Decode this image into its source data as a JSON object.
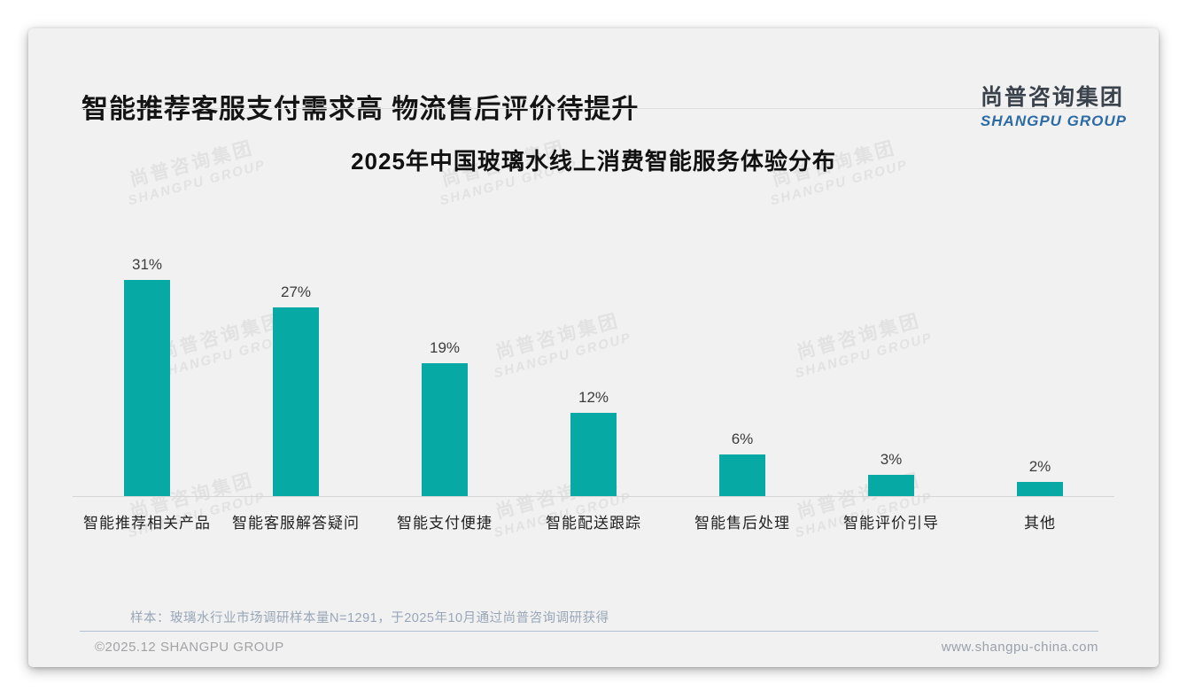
{
  "header": {
    "title": "智能推荐客服支付需求高 物流售后评价待提升",
    "logo": {
      "cn": "尚普咨询集团",
      "en": "SHANGPU GROUP"
    }
  },
  "chart_data": {
    "type": "bar",
    "title": "2025年中国玻璃水线上消费智能服务体验分布",
    "categories": [
      "智能推荐相关产品",
      "智能客服解答疑问",
      "智能支付便捷",
      "智能配送跟踪",
      "智能售后处理",
      "智能评价引导",
      "其他"
    ],
    "values": [
      31,
      27,
      19,
      12,
      6,
      3,
      2
    ],
    "value_labels": [
      "31%",
      "27%",
      "19%",
      "12%",
      "6%",
      "3%",
      "2%"
    ],
    "unit": "%",
    "bar_color": "#06a9a3",
    "ylim": [
      0,
      33
    ],
    "grid": false,
    "legend": "none",
    "xlabel": "",
    "ylabel": ""
  },
  "watermark": {
    "cn": "尚普咨询集团",
    "en": "SHANGPU GROUP"
  },
  "footer": {
    "note": "样本：玻璃水行业市场调研样本量N=1291，于2025年10月通过尚普咨询调研获得",
    "copyright": "©2025.12 SHANGPU GROUP",
    "website": "www.shangpu-china.com"
  }
}
